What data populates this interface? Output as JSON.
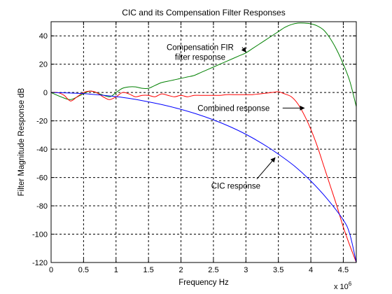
{
  "chart_data": {
    "type": "line",
    "title": "CIC and its Compensation Filter Responses",
    "xlabel": "Frequency Hz",
    "ylabel": "Filter Magnitude Response dB",
    "x_multiplier": "x 10",
    "x_multiplier_exponent": "6",
    "xlim": [
      0,
      4.7
    ],
    "ylim": [
      -120,
      50
    ],
    "grid": true,
    "x_ticks": [
      0,
      0.5,
      1,
      1.5,
      2,
      2.5,
      3,
      3.5,
      4,
      4.5
    ],
    "x_tick_labels": [
      "0",
      "0.5",
      "1",
      "1.5",
      "2",
      "2.5",
      "3",
      "3.5",
      "4",
      "4.5"
    ],
    "y_ticks": [
      -120,
      -100,
      -80,
      -60,
      -40,
      -20,
      0,
      20,
      40
    ],
    "y_tick_labels": [
      "-120",
      "-100",
      "-80",
      "-60",
      "-40",
      "-20",
      "0",
      "20",
      "40"
    ],
    "series": [
      {
        "color": "#008000",
        "x": [
          0,
          0.15,
          0.3,
          0.45,
          0.6,
          0.75,
          0.9,
          1.0,
          1.1,
          1.2,
          1.3,
          1.4,
          1.5,
          1.6,
          1.7,
          1.8,
          1.9,
          2.0,
          2.1,
          2.2,
          2.3,
          2.4,
          2.5,
          2.6,
          2.7,
          2.8,
          2.9,
          3.0,
          3.1,
          3.2,
          3.3,
          3.4,
          3.5,
          3.6,
          3.7,
          3.8,
          3.9,
          4.0,
          4.1,
          4.2,
          4.3,
          4.4,
          4.5,
          4.6,
          4.7
        ],
        "y": [
          0,
          -3,
          -5,
          -2,
          1,
          -1,
          -3,
          0,
          3,
          4,
          4,
          3,
          3,
          5,
          7,
          8,
          9,
          10,
          11,
          12,
          14,
          16,
          18,
          20,
          22,
          24,
          26,
          28,
          31,
          34,
          37,
          40,
          43,
          46,
          48,
          49,
          49,
          48.5,
          47,
          44,
          38,
          30,
          20,
          8,
          -10
        ]
      },
      {
        "color": "#ff0000",
        "x": [
          0,
          0.1,
          0.2,
          0.3,
          0.4,
          0.5,
          0.6,
          0.7,
          0.8,
          0.9,
          1.0,
          1.1,
          1.2,
          1.3,
          1.4,
          1.5,
          1.6,
          1.7,
          1.8,
          1.9,
          2.0,
          2.1,
          2.2,
          2.3,
          2.4,
          2.5,
          2.6,
          2.7,
          2.8,
          2.9,
          3.0,
          3.1,
          3.2,
          3.3,
          3.4,
          3.5,
          3.6,
          3.7,
          3.8,
          3.9,
          4.0,
          4.1,
          4.2,
          4.3,
          4.4,
          4.5,
          4.6,
          4.65,
          4.7
        ],
        "y": [
          0,
          0,
          -2,
          -6,
          -3,
          0,
          1,
          0,
          -3,
          -5,
          -3,
          0,
          -1,
          -3,
          -2,
          -2,
          -3,
          -1,
          -2,
          -3,
          -2,
          -3,
          -2,
          -2,
          -2,
          -2,
          -2,
          -1.5,
          -1.5,
          -1.5,
          -1.5,
          -1.5,
          -1,
          -0.5,
          0,
          0.5,
          -1,
          -3,
          -8,
          -16,
          -26,
          -38,
          -52,
          -66,
          -80,
          -95,
          -108,
          -114,
          -120
        ]
      },
      {
        "color": "#0000ff",
        "x": [
          0,
          0.25,
          0.5,
          0.75,
          1.0,
          1.25,
          1.5,
          1.75,
          2.0,
          2.25,
          2.5,
          2.75,
          3.0,
          3.25,
          3.5,
          3.75,
          4.0,
          4.25,
          4.5,
          4.6,
          4.7
        ],
        "y": [
          0,
          -0.3,
          -0.8,
          -1.7,
          -2.9,
          -4.5,
          -6.6,
          -9.0,
          -11.9,
          -15.3,
          -19.3,
          -24.0,
          -29.5,
          -36.0,
          -43.5,
          -52.0,
          -62.5,
          -75.0,
          -90.0,
          -100.0,
          -120.0
        ]
      }
    ],
    "annotations": [
      {
        "lines": [
          "Compensation FIR",
          "filter response"
        ],
        "text_x": 3.05,
        "text_y": 28,
        "arrow_to": [
          3.0,
          28.5
        ]
      },
      {
        "lines": [
          "Combined response"
        ],
        "text_x": 3.35,
        "text_y": -11,
        "arrow_to": [
          3.9,
          -11
        ]
      },
      {
        "lines": [
          "CIC response"
        ],
        "text_x": 2.5,
        "text_y": -66,
        "arrow_to": [
          3.45,
          -46
        ]
      }
    ]
  }
}
